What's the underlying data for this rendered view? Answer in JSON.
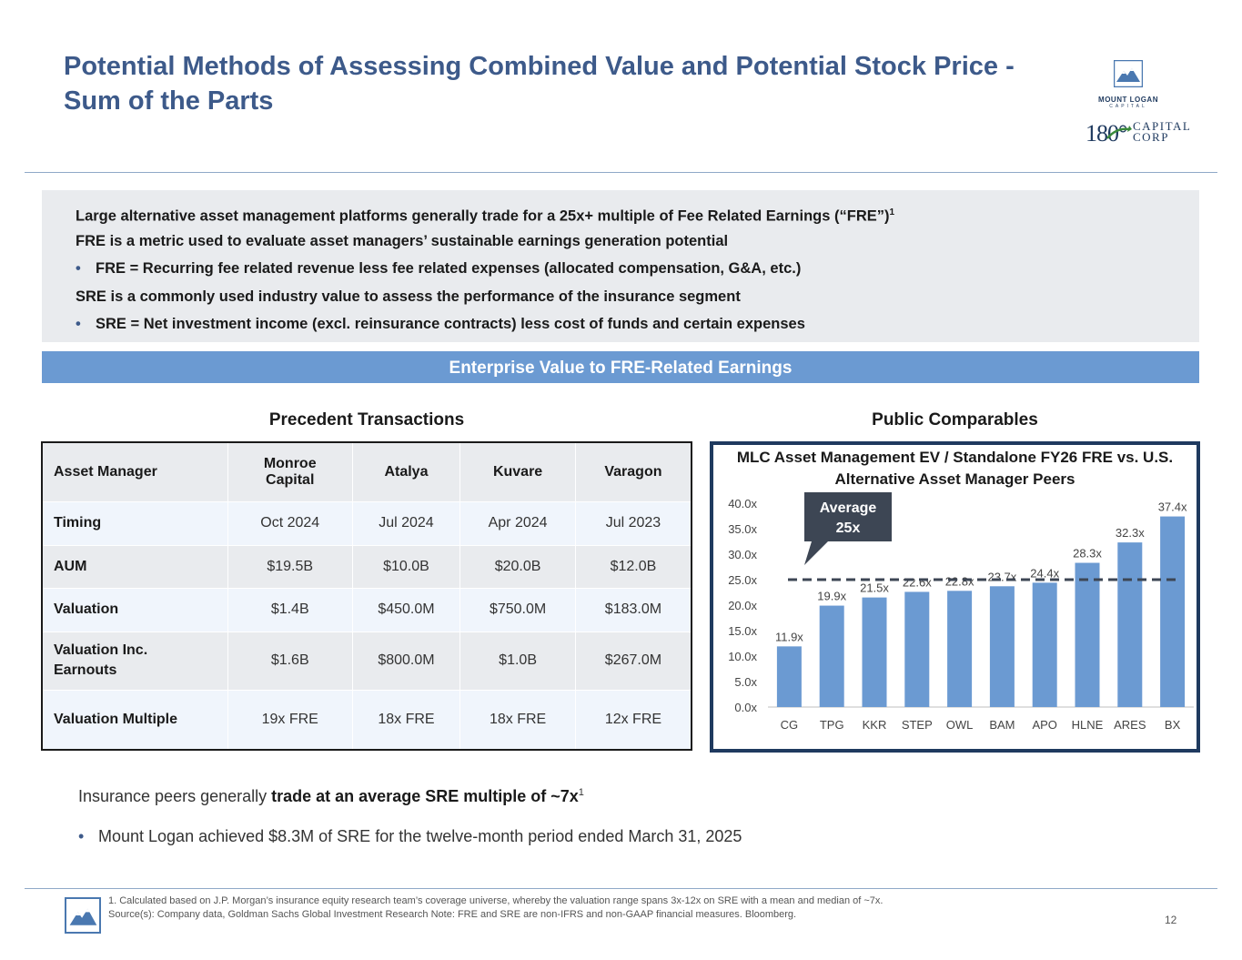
{
  "title": {
    "line1": "Potential Methods of Assessing Combined Value and Potential Stock Price -",
    "line2": "Sum of the Parts"
  },
  "logos": {
    "mlc_name": "MOUNT LOGAN",
    "mlc_sub": "CAPITAL",
    "corp_num": "180°",
    "corp_line1": "CAPITAL",
    "corp_line2": "CORP"
  },
  "summary": {
    "line1": "Large alternative asset management platforms generally trade for a 25x+ multiple of Fee Related Earnings (“FRE”)",
    "line1_sup": "1",
    "line2": "FRE is a metric used to evaluate asset managers’ sustainable earnings generation potential",
    "bullet1": "FRE = Recurring fee related revenue less fee related expenses (allocated compensation, G&A, etc.)",
    "line3": "SRE is a commonly used industry value to assess the performance of the insurance segment",
    "bullet2": "SRE = Net investment income (excl. reinsurance contracts) less cost of funds and certain expenses"
  },
  "banner": "Enterprise Value to FRE-Related Earnings",
  "precedent": {
    "title": "Precedent Transactions",
    "headers": [
      "Asset Manager",
      "Monroe Capital",
      "Atalya",
      "Kuvare",
      "Varagon"
    ],
    "rows": [
      [
        "Timing",
        "Oct 2024",
        "Jul 2024",
        "Apr 2024",
        "Jul 2023"
      ],
      [
        "AUM",
        "$19.5B",
        "$10.0B",
        "$20.0B",
        "$12.0B"
      ],
      [
        "Valuation",
        "$1.4B",
        "$450.0M",
        "$750.0M",
        "$183.0M"
      ],
      [
        "Valuation Inc. Earnouts",
        "$1.6B",
        "$800.0M",
        "$1.0B",
        "$267.0M"
      ],
      [
        "Valuation Multiple",
        "19x FRE",
        "18x FRE",
        "18x FRE",
        "12x FRE"
      ]
    ]
  },
  "public": {
    "title": "Public Comparables"
  },
  "chart_data": {
    "type": "bar",
    "title": "MLC Asset Management EV / Standalone FY26 FRE vs. U.S. Alternative Asset Manager Peers",
    "title_line1": "MLC Asset Management EV / Standalone FY26 FRE vs. U.S.",
    "title_line2": "Alternative Asset Manager Peers",
    "categories": [
      "CG",
      "TPG",
      "KKR",
      "STEP",
      "OWL",
      "BAM",
      "APO",
      "HLNE",
      "ARES",
      "BX"
    ],
    "values": [
      11.9,
      19.9,
      21.5,
      22.6,
      22.8,
      23.7,
      24.4,
      28.3,
      32.3,
      37.4
    ],
    "data_labels": [
      "11.9x",
      "19.9x",
      "21.5x",
      "22.6x",
      "22.8x",
      "23.7x",
      "24.4x",
      "28.3x",
      "32.3x",
      "37.4x"
    ],
    "y_ticks": [
      "0.0x",
      "5.0x",
      "10.0x",
      "15.0x",
      "20.0x",
      "25.0x",
      "30.0x",
      "35.0x",
      "40.0x"
    ],
    "ylim": [
      0,
      40
    ],
    "average": 25,
    "average_label_line1": "Average",
    "average_label_line2": "25x",
    "bar_color": "#6b9ad2",
    "average_line_color": "#3d4654"
  },
  "insurance": {
    "lead": "Insurance peers generally ",
    "bold": "trade at an average SRE multiple of ~7x",
    "sup": "1",
    "bullet": "Mount Logan achieved $8.3M of SRE for the twelve-month period ended March 31, 2025"
  },
  "footnote": {
    "line1": "1. Calculated based on J.P. Morgan’s insurance equity research team’s coverage universe, whereby the valuation range spans 3x-12x on SRE with a mean and median of ~7x.",
    "line2": "Source(s): Company data, Goldman Sachs Global Investment Research  Note: FRE and SRE are non-IFRS and non-GAAP financial measures. Bloomberg."
  },
  "page_number": "12",
  "colors": {
    "title": "#3d5a8a",
    "banner": "#6b9ad2",
    "panel": "#e9ebee",
    "chart_border": "#1f3a5f"
  }
}
